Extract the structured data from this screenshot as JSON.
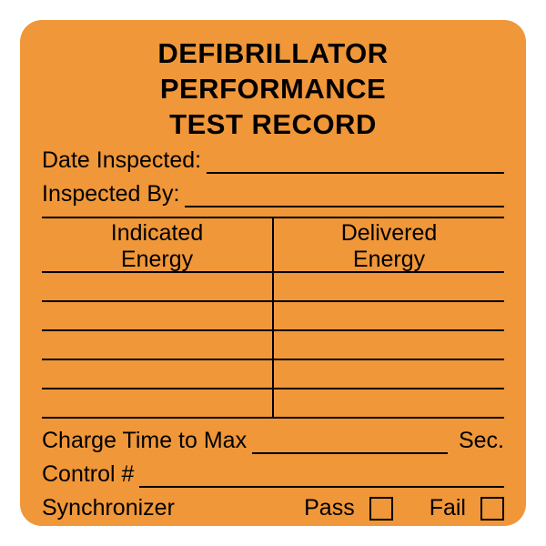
{
  "colors": {
    "background": "#f09739",
    "text": "#000000",
    "line": "#000000"
  },
  "typography": {
    "title_fontsize": 31,
    "body_fontsize": 25,
    "header_fontsize": 25
  },
  "layout": {
    "data_row_height": 32,
    "header_row_height": 60,
    "checkbox_size": 26,
    "num_data_rows": 5
  },
  "title": {
    "line1": "DEFIBRILLATOR PERFORMANCE",
    "line2": "TEST RECORD"
  },
  "fields": {
    "date_inspected_label": "Date Inspected:",
    "inspected_by_label": "Inspected By:"
  },
  "table": {
    "col1": "Indicated Energy",
    "col2": "Delivered Energy",
    "col1_line1": "Indicated",
    "col1_line2": "Energy",
    "col2_line1": "Delivered",
    "col2_line2": "Energy"
  },
  "bottom": {
    "charge_time_label": "Charge Time to Max",
    "charge_time_unit": "Sec.",
    "control_label": "Control #",
    "synchronizer_label": "Synchronizer",
    "pass_label": "Pass",
    "fail_label": "Fail"
  }
}
